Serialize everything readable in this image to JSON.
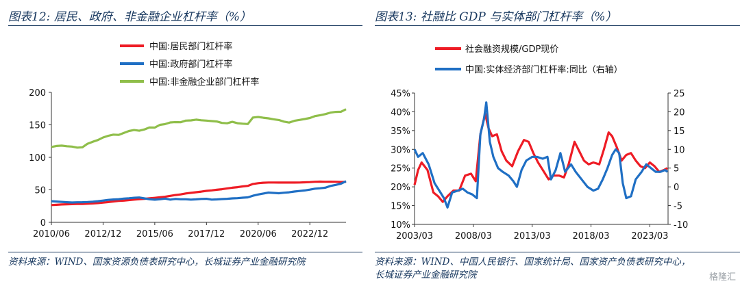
{
  "left": {
    "title": "图表12:  居民、政府、非金融企业杠杆率（%）",
    "source": "资料来源：WIND、国家资源负债表研究中心，长城证券产业金融研究院"
  },
  "right": {
    "title": "图表13:  社融比 GDP 与实体部门杠杆率（%）",
    "source": "资料来源：WIND、中国人民银行、国家统计局、国家资产负债表研究中心，长城证券产业金融研究院"
  },
  "watermark": "格隆汇",
  "colors": {
    "red": "#ee1c25",
    "blue": "#1f6fc4",
    "green": "#8fbe4a",
    "title": "#17375e"
  },
  "chart_data": [
    {
      "type": "line",
      "x": [
        "2010/06",
        "2010/09",
        "2010/12",
        "2011/03",
        "2011/06",
        "2011/09",
        "2011/12",
        "2012/03",
        "2012/06",
        "2012/09",
        "2012/12",
        "2013/03",
        "2013/06",
        "2013/09",
        "2013/12",
        "2014/03",
        "2014/06",
        "2014/09",
        "2014/12",
        "2015/03",
        "2015/06",
        "2015/09",
        "2015/12",
        "2016/03",
        "2016/06",
        "2016/09",
        "2016/12",
        "2017/03",
        "2017/06",
        "2017/09",
        "2017/12",
        "2018/03",
        "2018/06",
        "2018/09",
        "2018/12",
        "2019/03",
        "2019/06",
        "2019/09",
        "2019/12",
        "2020/03",
        "2020/06",
        "2020/09",
        "2020/12",
        "2021/03",
        "2021/06",
        "2021/09",
        "2021/12",
        "2022/03",
        "2022/06",
        "2022/09",
        "2022/12",
        "2023/03",
        "2023/06",
        "2023/09",
        "2023/12",
        "2024/03",
        "2024/06",
        "2024/09"
      ],
      "xticks": [
        "2010/06",
        "2012/12",
        "2015/06",
        "2017/12",
        "2020/06",
        "2022/12"
      ],
      "ylim": [
        0,
        200
      ],
      "yticks": [
        0,
        50,
        100,
        150,
        200
      ],
      "series": [
        {
          "name": "中国:居民部门杠杆率",
          "color": "#ee1c25",
          "values": [
            26.5,
            27,
            27.5,
            27.8,
            28,
            28.2,
            28.3,
            28.6,
            29,
            29.6,
            30.3,
            31.2,
            32.1,
            32.9,
            33.4,
            34.2,
            35,
            35.7,
            36.2,
            36.9,
            37.7,
            38.5,
            39.4,
            40.7,
            42,
            43,
            44.4,
            45.4,
            46.3,
            47.3,
            48.4,
            49.2,
            50.1,
            51,
            52.2,
            53.3,
            54.1,
            55.3,
            56.1,
            59,
            60.2,
            61,
            61.3,
            61.3,
            61.2,
            61.2,
            61.3,
            61.2,
            61.3,
            61.6,
            61.9,
            62.4,
            62.6,
            62.4,
            62.5,
            62.4,
            62.1,
            62.3
          ]
        },
        {
          "name": "中国:政府部门杠杆率",
          "color": "#1f6fc4",
          "values": [
            32.5,
            32,
            31.5,
            31,
            30.5,
            30.8,
            31,
            31.3,
            31.8,
            32.5,
            33.5,
            34.5,
            35.2,
            35.6,
            36.5,
            37,
            37.8,
            38.2,
            36.8,
            35.5,
            34.8,
            35.5,
            36.5,
            35,
            36,
            35.5,
            35.5,
            35,
            35.4,
            36,
            36.2,
            35,
            35.3,
            35.8,
            36.2,
            36.8,
            37.2,
            37.9,
            38.4,
            40.9,
            42.8,
            44.3,
            45.8,
            45.3,
            44.7,
            45.6,
            46.2,
            47.4,
            48.2,
            49,
            50.3,
            51.8,
            52.4,
            53.3,
            56,
            57.6,
            59.4,
            63.3
          ]
        },
        {
          "name": "中国:非金融企业部门杠杆率",
          "color": "#8fbe4a",
          "values": [
            116,
            117.5,
            118,
            117,
            116.5,
            114.9,
            115.5,
            121,
            124,
            126.6,
            130.5,
            133.2,
            135,
            134.5,
            137.5,
            140.5,
            142,
            141,
            143,
            146,
            145.8,
            150,
            151.2,
            153.7,
            154.2,
            154,
            156.5,
            156.8,
            158,
            157,
            156.5,
            155.8,
            155.2,
            153,
            152.4,
            154.6,
            152.5,
            151.8,
            151.3,
            161.3,
            162.1,
            161,
            160,
            158.5,
            157.5,
            155,
            153.5,
            156.2,
            157.6,
            158.9,
            160.5,
            163.5,
            164.8,
            166.5,
            168.8,
            169.9,
            170.1,
            174
          ]
        }
      ]
    },
    {
      "type": "line",
      "x": [
        "2003/03",
        "2004/03",
        "2005/03",
        "2006/03",
        "2007/03",
        "2008/03",
        "2009/03",
        "2010/03",
        "2011/03",
        "2012/03",
        "2013/03",
        "2014/03",
        "2015/03",
        "2016/03",
        "2017/03",
        "2018/03",
        "2019/03",
        "2020/03",
        "2021/03",
        "2022/03",
        "2023/03",
        "2024/03"
      ],
      "xticks": [
        "2003/03",
        "2008/03",
        "2013/03",
        "2018/03",
        "2023/03"
      ],
      "ylim_left": [
        0.1,
        0.45
      ],
      "yticks_left": [
        "10%",
        "15%",
        "20%",
        "25%",
        "30%",
        "35%",
        "40%",
        "45%"
      ],
      "ylim_right": [
        -10,
        25
      ],
      "yticks_right": [
        -10,
        -5,
        0,
        5,
        10,
        15,
        20,
        25
      ],
      "series": [
        {
          "name": "社会融资规模/GDP现价",
          "axis": "left",
          "color": "#ee1c25",
          "points": [
            [
              2003.2,
              0.205
            ],
            [
              2003.5,
              0.245
            ],
            [
              2003.8,
              0.265
            ],
            [
              2004.3,
              0.245
            ],
            [
              2004.8,
              0.185
            ],
            [
              2005.2,
              0.175
            ],
            [
              2005.6,
              0.16
            ],
            [
              2006.0,
              0.175
            ],
            [
              2006.5,
              0.19
            ],
            [
              2007.0,
              0.19
            ],
            [
              2007.5,
              0.23
            ],
            [
              2008.0,
              0.235
            ],
            [
              2008.4,
              0.215
            ],
            [
              2008.8,
              0.34
            ],
            [
              2009.2,
              0.395
            ],
            [
              2009.5,
              0.355
            ],
            [
              2009.8,
              0.335
            ],
            [
              2010.2,
              0.34
            ],
            [
              2010.6,
              0.295
            ],
            [
              2011.0,
              0.27
            ],
            [
              2011.5,
              0.255
            ],
            [
              2012.0,
              0.295
            ],
            [
              2012.5,
              0.325
            ],
            [
              2012.9,
              0.32
            ],
            [
              2013.3,
              0.29
            ],
            [
              2013.7,
              0.265
            ],
            [
              2014.2,
              0.24
            ],
            [
              2014.6,
              0.22
            ],
            [
              2015.0,
              0.23
            ],
            [
              2015.5,
              0.23
            ],
            [
              2015.9,
              0.225
            ],
            [
              2016.3,
              0.26
            ],
            [
              2016.8,
              0.32
            ],
            [
              2017.2,
              0.295
            ],
            [
              2017.6,
              0.27
            ],
            [
              2018.0,
              0.26
            ],
            [
              2018.4,
              0.265
            ],
            [
              2018.9,
              0.26
            ],
            [
              2019.3,
              0.3
            ],
            [
              2019.7,
              0.345
            ],
            [
              2020.0,
              0.335
            ],
            [
              2020.4,
              0.305
            ],
            [
              2020.8,
              0.27
            ],
            [
              2021.2,
              0.285
            ],
            [
              2021.6,
              0.29
            ],
            [
              2022.0,
              0.27
            ],
            [
              2022.4,
              0.255
            ],
            [
              2022.8,
              0.25
            ],
            [
              2023.2,
              0.265
            ],
            [
              2023.6,
              0.255
            ],
            [
              2024.0,
              0.24
            ],
            [
              2024.4,
              0.245
            ],
            [
              2024.7,
              0.25
            ]
          ]
        },
        {
          "name": "中国:实体经济部门杠杆率:同比（右轴）",
          "axis": "right",
          "color": "#1f6fc4",
          "points": [
            [
              2003.2,
              10
            ],
            [
              2003.5,
              8
            ],
            [
              2003.9,
              9
            ],
            [
              2004.4,
              6
            ],
            [
              2004.9,
              1
            ],
            [
              2005.3,
              -1
            ],
            [
              2005.7,
              -3
            ],
            [
              2006.0,
              -5.5
            ],
            [
              2006.4,
              -1.5
            ],
            [
              2006.9,
              -1
            ],
            [
              2007.3,
              -0.5
            ],
            [
              2007.7,
              -1.5
            ],
            [
              2008.1,
              -2
            ],
            [
              2008.5,
              -3
            ],
            [
              2008.8,
              14
            ],
            [
              2009.1,
              18
            ],
            [
              2009.3,
              22.5
            ],
            [
              2009.6,
              12
            ],
            [
              2009.9,
              8
            ],
            [
              2010.3,
              5
            ],
            [
              2010.7,
              4
            ],
            [
              2011.2,
              3
            ],
            [
              2011.6,
              1.5
            ],
            [
              2011.9,
              0
            ],
            [
              2012.3,
              4.5
            ],
            [
              2012.7,
              7
            ],
            [
              2013.2,
              8
            ],
            [
              2013.6,
              8
            ],
            [
              2014.1,
              7.5
            ],
            [
              2014.5,
              8
            ],
            [
              2014.8,
              2
            ],
            [
              2015.2,
              4.5
            ],
            [
              2015.6,
              9
            ],
            [
              2016.0,
              4
            ],
            [
              2016.5,
              6
            ],
            [
              2016.9,
              4
            ],
            [
              2017.4,
              2
            ],
            [
              2017.9,
              0
            ],
            [
              2018.4,
              -1
            ],
            [
              2018.8,
              -0.5
            ],
            [
              2019.2,
              2
            ],
            [
              2019.6,
              5
            ],
            [
              2020.0,
              8.5
            ],
            [
              2020.3,
              10
            ],
            [
              2020.6,
              9
            ],
            [
              2020.9,
              1
            ],
            [
              2021.2,
              -3
            ],
            [
              2021.6,
              -2.5
            ],
            [
              2022.0,
              2
            ],
            [
              2022.5,
              4
            ],
            [
              2022.9,
              6
            ],
            [
              2023.3,
              5
            ],
            [
              2023.7,
              4
            ],
            [
              2024.1,
              4
            ],
            [
              2024.5,
              4.5
            ],
            [
              2024.7,
              4
            ]
          ]
        }
      ]
    }
  ]
}
